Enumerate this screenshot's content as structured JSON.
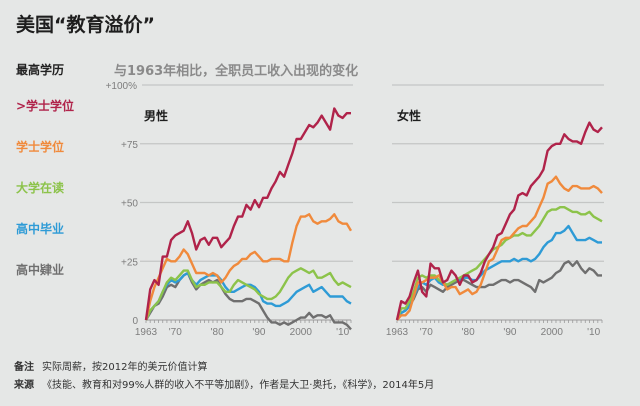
{
  "title": "美国“教育溢价”",
  "legend": {
    "title": "最高学历",
    "items": [
      {
        "label": ">学士学位",
        "color": "#b0234a"
      },
      {
        "label": "学士学位",
        "color": "#f08a3c"
      },
      {
        "label": "大学在读",
        "color": "#8cc34a"
      },
      {
        "label": "高中毕业",
        "color": "#2e9bd6"
      },
      {
        "label": "高中肄业",
        "color": "#6f6f6f"
      }
    ]
  },
  "footer": {
    "note_label": "备注",
    "note": "实际周薪，按2012年的美元价值计算",
    "source_label": "来源",
    "source": "《技能、教育和对99%人群的收入不平等加剧》，作者是大卫·奥托，《科学》，2014年5月"
  },
  "chart_data": [
    {
      "type": "line",
      "title": "与1963年相比，全职员工收入出现的变化",
      "panel": "男性",
      "x_start": 1963,
      "x_end": 2012,
      "ylim": [
        0,
        100
      ],
      "yticks": [
        {
          "v": 100,
          "label": "+100%"
        },
        {
          "v": 75,
          "label": "+75"
        },
        {
          "v": 50,
          "label": "+50"
        },
        {
          "v": 25,
          "label": "+25"
        },
        {
          "v": 0,
          "label": "0"
        }
      ],
      "xticks": [
        {
          "v": 1963,
          "label": "1963"
        },
        {
          "v": 1970,
          "label": "'70"
        },
        {
          "v": 1980,
          "label": "'80"
        },
        {
          "v": 1990,
          "label": "'90"
        },
        {
          "v": 2000,
          "label": "2000"
        },
        {
          "v": 2010,
          "label": "'10"
        }
      ],
      "grid": true,
      "series": [
        {
          "name": ">学士学位",
          "values": [
            0,
            13,
            17,
            15,
            27,
            27,
            34,
            36,
            37,
            38,
            42,
            37,
            30,
            34,
            35,
            32,
            35,
            35,
            31,
            33,
            35,
            40,
            44,
            44,
            49,
            47,
            51,
            48,
            52,
            52,
            56,
            59,
            63,
            61,
            66,
            71,
            77,
            77,
            80,
            83,
            82,
            84,
            87,
            84,
            81,
            90,
            87,
            86,
            88,
            88
          ]
        },
        {
          "name": "学士学位",
          "values": [
            0,
            8,
            14,
            18,
            22,
            26,
            25,
            25,
            27,
            30,
            28,
            24,
            20,
            20,
            20,
            19,
            20,
            19,
            16,
            18,
            21,
            23,
            24,
            26,
            26,
            28,
            29,
            27,
            25,
            25,
            26,
            26,
            26,
            25,
            25,
            33,
            40,
            44,
            44,
            45,
            42,
            41,
            42,
            42,
            43,
            45,
            42,
            41,
            41,
            38
          ]
        },
        {
          "name": "大学在读",
          "values": [
            0,
            4,
            6,
            8,
            12,
            16,
            18,
            17,
            19,
            21,
            21,
            17,
            14,
            15,
            15,
            16,
            16,
            16,
            14,
            12,
            12,
            15,
            17,
            16,
            15,
            14,
            13,
            11,
            10,
            9,
            9,
            10,
            12,
            15,
            18,
            20,
            21,
            22,
            21,
            20,
            21,
            18,
            18,
            19,
            20,
            17,
            15,
            16,
            15,
            14
          ]
        },
        {
          "name": "高中毕业",
          "values": [
            0,
            4,
            6,
            8,
            12,
            15,
            17,
            16,
            17,
            19,
            20,
            17,
            15,
            17,
            18,
            19,
            19,
            19,
            17,
            14,
            12,
            12,
            13,
            14,
            15,
            15,
            14,
            12,
            8,
            7,
            7,
            6,
            6,
            7,
            8,
            10,
            12,
            13,
            14,
            15,
            12,
            13,
            14,
            12,
            10,
            10,
            10,
            10,
            8,
            7
          ]
        },
        {
          "name": "高中肄业",
          "values": [
            0,
            3,
            6,
            7,
            10,
            14,
            15,
            14,
            17,
            19,
            20,
            16,
            13,
            15,
            16,
            17,
            16,
            17,
            14,
            11,
            9,
            8,
            8,
            8,
            9,
            9,
            8,
            7,
            4,
            1,
            -1,
            -1,
            -2,
            -1,
            -2,
            -1,
            0,
            1,
            1,
            3,
            1,
            2,
            2,
            1,
            2,
            -1,
            -1,
            -1,
            -2,
            -4
          ]
        }
      ]
    },
    {
      "type": "line",
      "panel": "女性",
      "x_start": 1963,
      "x_end": 2012,
      "ylim": [
        0,
        100
      ],
      "xticks": [
        {
          "v": 1963,
          "label": "1963"
        },
        {
          "v": 1970,
          "label": "'70"
        },
        {
          "v": 1980,
          "label": "'80"
        },
        {
          "v": 1990,
          "label": "'90"
        },
        {
          "v": 2000,
          "label": "2000"
        },
        {
          "v": 2010,
          "label": "'10"
        }
      ],
      "grid": true,
      "series": [
        {
          "name": ">学士学位",
          "values": [
            0,
            8,
            7,
            10,
            16,
            21,
            12,
            10,
            24,
            22,
            22,
            16,
            17,
            21,
            19,
            15,
            19,
            19,
            16,
            17,
            20,
            25,
            28,
            31,
            36,
            37,
            41,
            45,
            47,
            53,
            54,
            53,
            57,
            59,
            61,
            64,
            72,
            74,
            75,
            75,
            79,
            77,
            76,
            76,
            75,
            80,
            84,
            81,
            80,
            82
          ]
        },
        {
          "name": "学士学位",
          "values": [
            0,
            2,
            2,
            4,
            10,
            16,
            16,
            17,
            18,
            18,
            19,
            16,
            13,
            14,
            14,
            11,
            12,
            13,
            11,
            12,
            15,
            20,
            25,
            26,
            30,
            34,
            35,
            35,
            37,
            39,
            40,
            40,
            42,
            44,
            48,
            52,
            58,
            59,
            61,
            58,
            56,
            55,
            57,
            57,
            56,
            56,
            56,
            57,
            56,
            54
          ]
        },
        {
          "name": "大学在读",
          "values": [
            0,
            5,
            5,
            8,
            12,
            18,
            19,
            18,
            19,
            19,
            17,
            16,
            15,
            16,
            17,
            18,
            19,
            20,
            21,
            22,
            24,
            26,
            28,
            30,
            31,
            32,
            34,
            35,
            36,
            36,
            37,
            36,
            36,
            38,
            40,
            43,
            46,
            47,
            47,
            48,
            48,
            47,
            46,
            46,
            45,
            45,
            46,
            44,
            43,
            42
          ]
        },
        {
          "name": "高中毕业",
          "values": [
            0,
            3,
            4,
            6,
            10,
            14,
            16,
            15,
            17,
            18,
            16,
            15,
            15,
            16,
            17,
            17,
            18,
            18,
            17,
            17,
            19,
            21,
            22,
            23,
            24,
            25,
            25,
            25,
            26,
            25,
            26,
            26,
            25,
            26,
            28,
            31,
            33,
            34,
            37,
            37,
            38,
            40,
            37,
            34,
            34,
            34,
            35,
            34,
            33,
            33
          ]
        },
        {
          "name": "高中肄业",
          "values": [
            0,
            3,
            4,
            6,
            9,
            13,
            14,
            12,
            15,
            14,
            13,
            12,
            14,
            15,
            16,
            17,
            17,
            16,
            15,
            14,
            14,
            14,
            15,
            15,
            16,
            17,
            17,
            16,
            17,
            17,
            16,
            15,
            14,
            12,
            17,
            16,
            17,
            18,
            20,
            21,
            24,
            25,
            23,
            25,
            22,
            20,
            22,
            21,
            19,
            19
          ]
        }
      ]
    }
  ]
}
